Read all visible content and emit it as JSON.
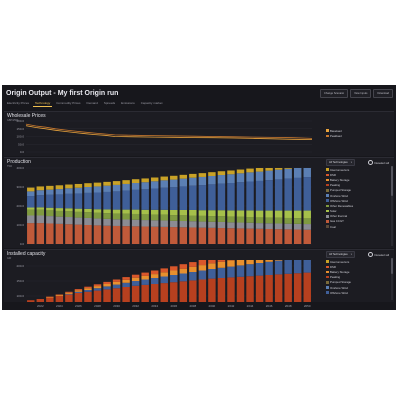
{
  "header": {
    "title": "Origin Output - My first Origin run",
    "buttons": [
      "Change Scenario",
      "View Inputs",
      "Download"
    ]
  },
  "tabs": [
    {
      "label": "Electricity Prices",
      "active": false
    },
    {
      "label": "Technology",
      "active": true
    },
    {
      "label": "Commodity Prices",
      "active": false
    },
    {
      "label": "Demand",
      "active": false
    },
    {
      "label": "Spreads",
      "active": false
    },
    {
      "label": "Emissions",
      "active": false
    },
    {
      "label": "Capacity market",
      "active": false
    }
  ],
  "wholesale": {
    "title": "Wholesale Prices",
    "unit": "GBP/MWh",
    "legend": [
      {
        "label": "Baseload",
        "color": "#e8a33c"
      },
      {
        "label": "Peakload",
        "color": "#c9782e"
      }
    ]
  },
  "production": {
    "title": "Production",
    "unit": "TWh",
    "dropdown": "All Technologies",
    "toggle": "Deselect all",
    "legend": [
      {
        "label": "Interconnectors",
        "color": "#c9a227"
      },
      {
        "label": "DSR",
        "color": "#d9572b"
      },
      {
        "label": "Battery Storage",
        "color": "#e8902e"
      },
      {
        "label": "Peaking",
        "color": "#b7401f"
      },
      {
        "label": "Pumped Storage",
        "color": "#7a6a3a"
      },
      {
        "label": "Onshore Wind",
        "color": "#5b7fb4"
      },
      {
        "label": "Offshore Wind",
        "color": "#3f5f99"
      },
      {
        "label": "Other Renewables",
        "color": "#7f9a40"
      },
      {
        "label": "Solar",
        "color": "#a5c04a"
      },
      {
        "label": "Other thermal",
        "color": "#8b8b93"
      },
      {
        "label": "Gas CCGT",
        "color": "#c05a3a"
      },
      {
        "label": "Coal",
        "color": "#5a4a3a"
      }
    ]
  },
  "installed": {
    "title": "Installed capacity",
    "unit": "GW",
    "dropdown": "All Technologies",
    "toggle": "Deselect all",
    "legend": [
      {
        "label": "Interconnectors",
        "color": "#c9a227"
      },
      {
        "label": "DSR",
        "color": "#d9572b"
      },
      {
        "label": "Battery Storage",
        "color": "#e8902e"
      },
      {
        "label": "Peaking",
        "color": "#b7401f"
      },
      {
        "label": "Pumped Storage",
        "color": "#7a6a3a"
      },
      {
        "label": "Onshore Wind",
        "color": "#5b7fb4"
      },
      {
        "label": "Offshore Wind",
        "color": "#3f5f99"
      }
    ]
  },
  "x_years": [
    "2022",
    "2024",
    "2026",
    "2028",
    "2030",
    "2032",
    "2034",
    "2036",
    "2038",
    "2040",
    "2042",
    "2044",
    "2046",
    "2048",
    "2050"
  ],
  "chart_data": [
    {
      "type": "line",
      "title": "Wholesale Prices",
      "ylabel": "GBP/MWh",
      "x": [
        2021,
        2022,
        2023,
        2024,
        2025,
        2026,
        2027,
        2028,
        2029,
        2030,
        2032,
        2034,
        2036,
        2038,
        2040,
        2042,
        2044,
        2046,
        2048,
        2050
      ],
      "yticks": [
        "200.0",
        "150.0",
        "100.0",
        "50.0",
        "0.0"
      ],
      "ylim": [
        0,
        200
      ],
      "series": [
        {
          "name": "Baseload",
          "values": [
            170,
            158,
            150,
            140,
            132,
            125,
            118,
            112,
            108,
            100,
            98,
            96,
            95,
            93,
            92,
            90,
            88,
            85,
            82,
            80
          ]
        },
        {
          "name": "Peakload",
          "values": [
            180,
            168,
            160,
            150,
            142,
            135,
            128,
            122,
            116,
            110,
            108,
            106,
            104,
            102,
            100,
            98,
            96,
            94,
            92,
            88
          ]
        }
      ]
    },
    {
      "type": "bar",
      "title": "Production",
      "ylabel": "TWh",
      "yticks": [
        "400.0",
        "300.0",
        "200.0",
        "100.0",
        "0.0"
      ],
      "ylim": [
        0,
        400
      ],
      "categories": [
        "2021",
        "2022",
        "2023",
        "2024",
        "2025",
        "2026",
        "2027",
        "2028",
        "2029",
        "2030",
        "2031",
        "2032",
        "2033",
        "2034",
        "2035",
        "2036",
        "2037",
        "2038",
        "2039",
        "2040",
        "2041",
        "2042",
        "2043",
        "2044",
        "2045",
        "2046",
        "2047",
        "2048",
        "2049",
        "2050"
      ],
      "series": [
        {
          "name": "Gas CCGT",
          "values": [
            110,
            110,
            108,
            106,
            104,
            102,
            100,
            98,
            96,
            95,
            94,
            93,
            92,
            91,
            90,
            89,
            88,
            87,
            86,
            85,
            84,
            83,
            82,
            81,
            80,
            79,
            78,
            77,
            76,
            75
          ]
        },
        {
          "name": "Other thermal",
          "values": [
            40,
            40,
            39,
            38,
            38,
            37,
            37,
            36,
            36,
            35,
            35,
            35,
            34,
            34,
            34,
            33,
            33,
            33,
            32,
            32,
            32,
            31,
            31,
            31,
            30,
            30,
            30,
            30,
            30,
            30
          ]
        },
        {
          "name": "Other Renewables",
          "values": [
            30,
            30,
            30,
            30,
            30,
            30,
            30,
            30,
            30,
            30,
            30,
            30,
            30,
            30,
            30,
            30,
            30,
            30,
            30,
            30,
            30,
            30,
            30,
            30,
            30,
            30,
            30,
            30,
            30,
            30
          ]
        },
        {
          "name": "Solar",
          "values": [
            12,
            13,
            14,
            15,
            16,
            17,
            18,
            19,
            20,
            21,
            22,
            23,
            24,
            25,
            26,
            27,
            28,
            29,
            30,
            31,
            32,
            33,
            34,
            35,
            36,
            37,
            38,
            39,
            40,
            41
          ]
        },
        {
          "name": "Offshore Wind",
          "values": [
            60,
            64,
            68,
            72,
            76,
            80,
            84,
            88,
            92,
            96,
            100,
            104,
            108,
            112,
            116,
            120,
            124,
            128,
            132,
            136,
            140,
            144,
            148,
            152,
            156,
            160,
            164,
            168,
            172,
            176
          ]
        },
        {
          "name": "Onshore Wind",
          "values": [
            25,
            26,
            27,
            28,
            29,
            30,
            31,
            32,
            33,
            34,
            35,
            36,
            37,
            38,
            39,
            40,
            41,
            42,
            43,
            44,
            45,
            46,
            47,
            48,
            49,
            50,
            51,
            52,
            53,
            54
          ]
        },
        {
          "name": "Interconnectors",
          "values": [
            20,
            20,
            20,
            20,
            20,
            20,
            20,
            20,
            20,
            20,
            20,
            20,
            20,
            20,
            20,
            20,
            20,
            20,
            20,
            20,
            20,
            20,
            20,
            20,
            20,
            20,
            20,
            20,
            20,
            20
          ]
        }
      ]
    },
    {
      "type": "bar",
      "title": "Installed capacity",
      "ylabel": "GW",
      "yticks": [
        "200.0",
        "150.0",
        "100.0"
      ],
      "ylim": [
        80,
        220
      ],
      "categories": [
        "2021",
        "2022",
        "2023",
        "2024",
        "2025",
        "2026",
        "2027",
        "2028",
        "2029",
        "2030",
        "2031",
        "2032",
        "2033",
        "2034",
        "2035",
        "2036",
        "2037",
        "2038",
        "2039",
        "2040",
        "2041",
        "2042",
        "2043",
        "2044",
        "2045",
        "2046",
        "2047",
        "2048",
        "2049",
        "2050"
      ],
      "series": [
        {
          "name": "Peaking",
          "values": [
            86,
            90,
            95,
            100,
            105,
            110,
            114,
            118,
            122,
            126,
            130,
            134,
            137,
            140,
            143,
            146,
            149,
            152,
            155,
            158,
            160,
            162,
            164,
            166,
            168,
            170,
            172,
            174,
            176,
            178
          ]
        },
        {
          "name": "Offshore Wind",
          "values": [
            0,
            0,
            0,
            0,
            2,
            4,
            6,
            8,
            10,
            12,
            14,
            16,
            18,
            20,
            22,
            24,
            26,
            28,
            30,
            32,
            34,
            36,
            38,
            40,
            42,
            44,
            46,
            48,
            50,
            52
          ]
        },
        {
          "name": "Battery Storage",
          "values": [
            0,
            0,
            2,
            3,
            4,
            5,
            6,
            7,
            8,
            9,
            10,
            11,
            12,
            13,
            14,
            15,
            16,
            17,
            18,
            19,
            20,
            21,
            22,
            23,
            24,
            25,
            26,
            27,
            28,
            29
          ]
        },
        {
          "name": "DSR",
          "values": [
            0,
            0,
            1,
            2,
            3,
            4,
            5,
            6,
            7,
            8,
            9,
            10,
            11,
            12,
            13,
            14,
            15,
            16,
            17,
            18,
            19,
            20,
            21,
            22,
            23,
            24,
            25,
            26,
            27,
            28
          ]
        }
      ]
    }
  ]
}
